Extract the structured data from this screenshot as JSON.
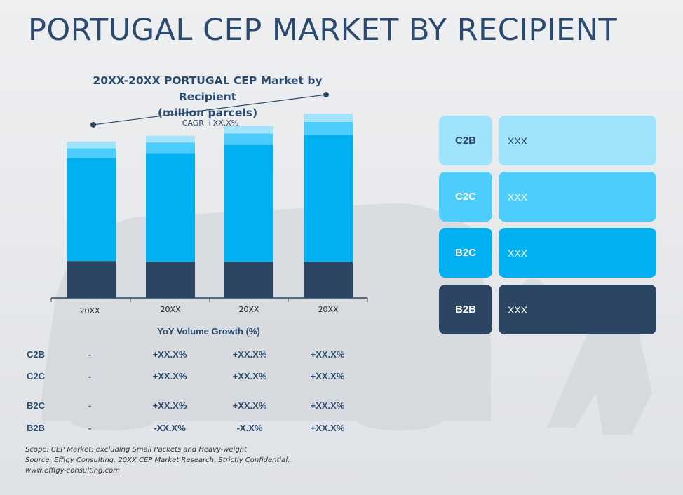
{
  "page": {
    "title": "PORTUGAL CEP MARKET BY RECIPIENT"
  },
  "chart_data": {
    "type": "bar",
    "stacked": true,
    "title": "20XX-20XX PORTUGAL CEP Market by Recipient",
    "subtitle": "(million parcels)",
    "categories": [
      "20XX",
      "20XX",
      "20XX",
      "20XX"
    ],
    "series": [
      {
        "name": "B2B",
        "color": "#2b4562",
        "values": [
          45,
          44,
          44,
          44
        ]
      },
      {
        "name": "B2C",
        "color": "#00b0f0",
        "values": [
          125,
          132,
          142,
          154
        ]
      },
      {
        "name": "C2C",
        "color": "#4ccdfb",
        "values": [
          12,
          13,
          14,
          16
        ]
      },
      {
        "name": "C2B",
        "color": "#a3e4fd",
        "values": [
          8,
          8,
          9,
          10
        ]
      }
    ],
    "ylim": [
      0,
      230
    ],
    "grid": false,
    "annotation": {
      "text": "CAGR +XX.X%"
    }
  },
  "yoy": {
    "title": "YoY Volume Growth (%)",
    "rows": [
      {
        "label": "C2B",
        "values": [
          "-",
          "+XX.X%",
          "+XX.X%",
          "+XX.X%"
        ]
      },
      {
        "label": "C2C",
        "values": [
          "-",
          "+XX.X%",
          "+XX.X%",
          "+XX.X%"
        ]
      },
      {
        "label": "B2C",
        "values": [
          "-",
          "+XX.X%",
          "+XX.X%",
          "+XX.X%"
        ]
      },
      {
        "label": "B2B",
        "values": [
          "-",
          "-XX.X%",
          "-X.X%",
          "+XX.X%"
        ]
      }
    ]
  },
  "legend": {
    "items": [
      {
        "label": "C2B",
        "value": "XXX",
        "bg": "#9fe3fd",
        "fg": "#2b4562"
      },
      {
        "label": "C2C",
        "value": "XXX",
        "bg": "#4ccdfb",
        "fg": "#ffffff"
      },
      {
        "label": "B2C",
        "value": "XXX",
        "bg": "#00b0f0",
        "fg": "#ffffff"
      },
      {
        "label": "B2B",
        "value": "XXX",
        "bg": "#2b4562",
        "fg": "#ffffff"
      }
    ]
  },
  "footnote": {
    "scope": "Scope: CEP Market; excluding Small Packets and Heavy-weight",
    "source": "Source: Effigy Consulting. 20XX CEP Market Research. Strictly Confidential.",
    "website": "www.effigy-consulting.com"
  }
}
